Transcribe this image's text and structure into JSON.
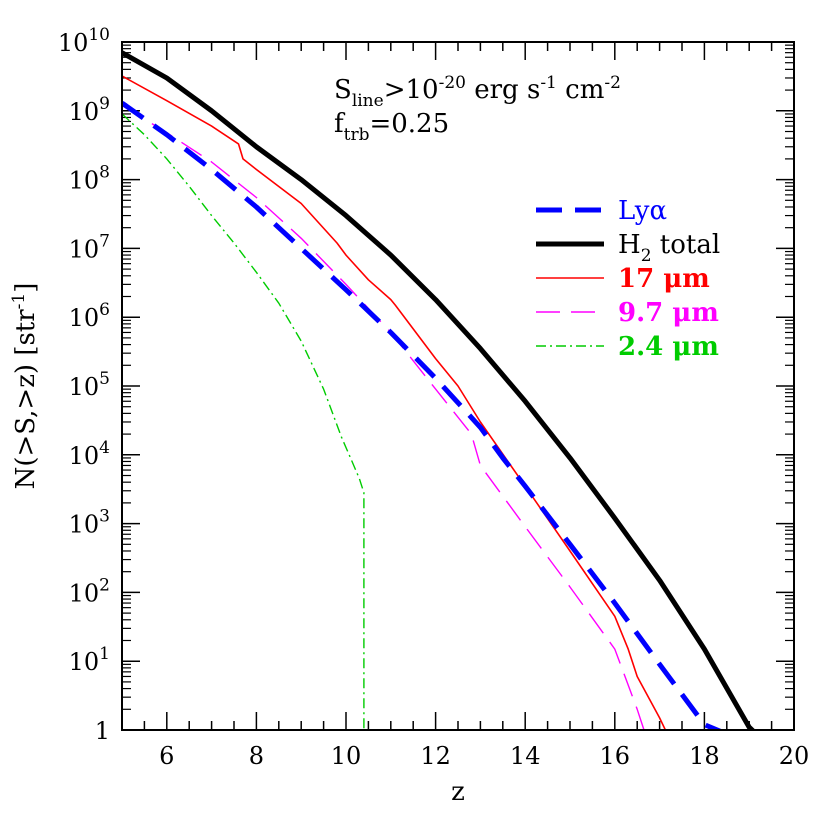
{
  "chart_data": {
    "type": "line",
    "xlabel": "z",
    "ylabel": "N(>S,>z) [str",
    "ylabel_exp": "-1",
    "ylabel_close": "]",
    "xlim": [
      5,
      20
    ],
    "ylim_log10": [
      0,
      10
    ],
    "y_scale": "log",
    "x_ticks": [
      6,
      8,
      10,
      12,
      14,
      16,
      18,
      20
    ],
    "y_ticks": [
      {
        "value": 1,
        "base": "1",
        "exp": ""
      },
      {
        "value": 10,
        "base": "10",
        "exp": "1"
      },
      {
        "value": 100,
        "base": "10",
        "exp": "2"
      },
      {
        "value": 1000,
        "base": "10",
        "exp": "3"
      },
      {
        "value": 10000,
        "base": "10",
        "exp": "4"
      },
      {
        "value": 100000,
        "base": "10",
        "exp": "5"
      },
      {
        "value": 1000000,
        "base": "10",
        "exp": "6"
      },
      {
        "value": 10000000,
        "base": "10",
        "exp": "7"
      },
      {
        "value": 100000000,
        "base": "10",
        "exp": "8"
      },
      {
        "value": 1000000000,
        "base": "10",
        "exp": "9"
      },
      {
        "value": 10000000000,
        "base": "10",
        "exp": "10"
      }
    ],
    "annotation": {
      "line1": {
        "a": "S",
        "a_sub": "line",
        "b": ">10",
        "b_sup": "-20",
        "c": " erg s",
        "c_sup": "-1",
        "d": " cm",
        "d_sup": "-2"
      },
      "line2": {
        "a": "f",
        "a_sub": "trb",
        "b": "=0.25"
      }
    },
    "legend_position": "right",
    "series": [
      {
        "name": "Lyα",
        "color": "#0000ff",
        "style": "thick-dash",
        "x": [
          5,
          6,
          7,
          8,
          9,
          10,
          11,
          12,
          13,
          13.5,
          14,
          15,
          16,
          17,
          18,
          18.45
        ],
        "y": [
          1300000000.0,
          450000000.0,
          140000000.0,
          40000000.0,
          10000000.0,
          2500000.0,
          600000.0,
          130000.0,
          25000.0,
          9000.0,
          3500.0,
          500,
          70,
          9,
          1.2,
          0.9
        ]
      },
      {
        "name": "H2 total",
        "color": "#000000",
        "style": "thick-solid",
        "x": [
          5,
          6,
          7,
          8,
          9,
          10,
          11,
          12,
          13,
          14,
          15,
          16,
          17,
          18,
          19,
          19.1
        ],
        "y": [
          7000000000.0,
          3000000000.0,
          1000000000.0,
          300000000.0,
          100000000.0,
          30000000.0,
          8000000.0,
          1800000.0,
          350000.0,
          60000.0,
          9000.0,
          1200.0,
          150,
          15,
          1.1,
          0.95
        ]
      },
      {
        "name": "17 μm",
        "color": "#ff0000",
        "style": "thin-solid",
        "x": [
          5,
          6,
          7,
          7.6,
          7.7,
          8,
          9,
          9.8,
          10,
          10.5,
          11,
          11.1,
          12,
          12.5,
          13,
          14,
          15,
          16,
          16.3,
          16.5,
          17,
          17.2
        ],
        "y": [
          3200000000.0,
          1400000000.0,
          600000000.0,
          330000000.0,
          200000000.0,
          140000000.0,
          45000000.0,
          12000000.0,
          8000000.0,
          3500000.0,
          1800000.0,
          1500000.0,
          250000.0,
          100000.0,
          30000.0,
          3500.0,
          400,
          45,
          15,
          6,
          1.5,
          0.8
        ]
      },
      {
        "name": "9.7 μm",
        "color": "#ff00ff",
        "style": "thin-dash",
        "x": [
          5,
          6,
          7,
          8,
          9,
          10,
          11,
          12,
          12.8,
          13,
          14,
          15,
          16,
          16.5,
          16.7
        ],
        "y": [
          1200000000.0,
          480000000.0,
          180000000.0,
          55000000.0,
          14000000.0,
          3000000.0,
          600000.0,
          90000.0,
          20000.0,
          7000.0,
          900,
          120,
          15,
          2,
          0.8
        ]
      },
      {
        "name": "2.4 μm",
        "color": "#00cc00",
        "style": "thin-dashdot",
        "x": [
          5,
          5.5,
          6,
          6.5,
          7,
          7.5,
          8,
          8.5,
          9,
          9.5,
          9.9,
          10.1,
          10.3,
          10.4,
          10.4,
          10.4
        ],
        "y": [
          900000000.0,
          450000000.0,
          200000000.0,
          80000000.0,
          30000000.0,
          12000000.0,
          4500000.0,
          1600000.0,
          450000.0,
          90000.0,
          18000.0,
          9000.0,
          4500.0,
          2800.0,
          30,
          0.9
        ]
      }
    ]
  }
}
